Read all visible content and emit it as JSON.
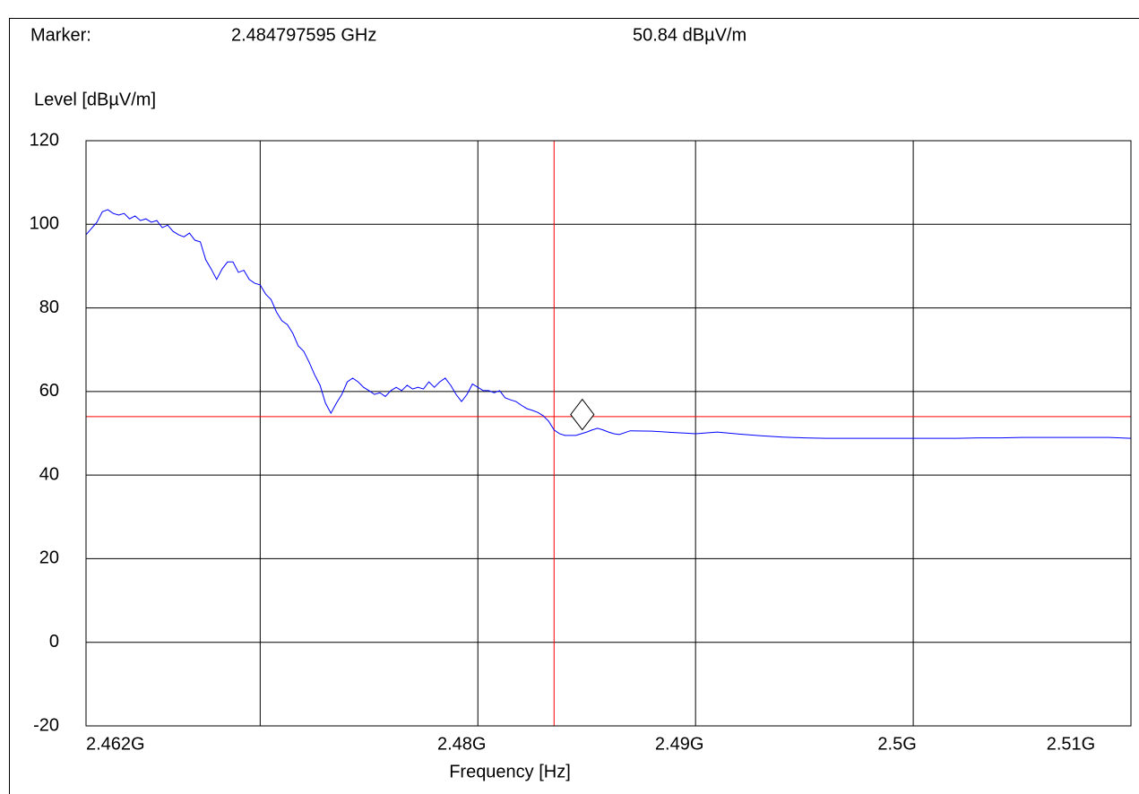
{
  "chart_data": {
    "type": "line",
    "marker_label": "Marker:",
    "marker": {
      "x": 2.484797595,
      "y": 50.84,
      "x_label": "2.484797595 GHz",
      "y_label": "50.84 dBµV/m"
    },
    "ylabel": "Level [dBµV/m]",
    "xlabel": "Frequency [Hz]",
    "xlim": [
      2.462,
      2.51
    ],
    "ylim": [
      -20,
      120
    ],
    "yticks": [
      -20,
      0,
      20,
      40,
      60,
      80,
      100,
      120
    ],
    "xticks": [
      {
        "value": 2.462,
        "label": "2.462G"
      },
      {
        "value": 2.47,
        "label": null
      },
      {
        "value": 2.48,
        "label": "2.48G"
      },
      {
        "value": 2.49,
        "label": "2.49G"
      },
      {
        "value": 2.5,
        "label": "2.5G"
      },
      {
        "value": 2.51,
        "label": "2.51G"
      }
    ],
    "grid": true,
    "limit_lines": {
      "x": 2.4835,
      "y": 54,
      "color": "#ff0000"
    },
    "x": [
      2.462,
      2.46225,
      2.4625,
      2.46275,
      2.463,
      2.46325,
      2.4635,
      2.46375,
      2.464,
      2.46425,
      2.4645,
      2.46475,
      2.465,
      2.46525,
      2.4655,
      2.46575,
      2.466,
      2.46625,
      2.4665,
      2.46675,
      2.467,
      2.46725,
      2.4675,
      2.46775,
      2.468,
      2.46825,
      2.4685,
      2.46875,
      2.469,
      2.46925,
      2.4695,
      2.46975,
      2.47,
      2.47025,
      2.4705,
      2.47075,
      2.471,
      2.47125,
      2.4715,
      2.47175,
      2.472,
      2.47225,
      2.4725,
      2.47275,
      2.473,
      2.47325,
      2.4735,
      2.47375,
      2.474,
      2.47425,
      2.4745,
      2.47475,
      2.475,
      2.47525,
      2.4755,
      2.47575,
      2.476,
      2.47625,
      2.4765,
      2.47675,
      2.477,
      2.47725,
      2.4775,
      2.47775,
      2.478,
      2.47825,
      2.4785,
      2.47875,
      2.479,
      2.47925,
      2.4795,
      2.47975,
      2.48,
      2.48025,
      2.4805,
      2.48075,
      2.481,
      2.48125,
      2.4815,
      2.48175,
      2.482,
      2.48225,
      2.4825,
      2.48275,
      2.483,
      2.48325,
      2.4835,
      2.48375,
      2.484,
      2.48425,
      2.4845,
      2.48475,
      2.485,
      2.48525,
      2.4855,
      2.48575,
      2.486,
      2.48625,
      2.4865,
      2.487,
      2.488,
      2.489,
      2.49,
      2.491,
      2.492,
      2.493,
      2.494,
      2.495,
      2.496,
      2.497,
      2.498,
      2.499,
      2.5,
      2.501,
      2.502,
      2.503,
      2.504,
      2.505,
      2.506,
      2.507,
      2.508,
      2.509,
      2.51
    ],
    "series": [
      {
        "color": "#0000ff",
        "values": [
          97.5,
          99,
          100.5,
          103,
          103.5,
          102.6,
          102.2,
          102.6,
          101.3,
          102,
          100.9,
          101.3,
          100.5,
          100.9,
          99.2,
          99.8,
          98.3,
          97.5,
          97,
          97.9,
          96.2,
          95.8,
          91.5,
          89.3,
          86.8,
          89.3,
          91,
          91,
          88.5,
          89,
          86.8,
          85.9,
          85.5,
          83.3,
          82,
          79,
          76.9,
          76,
          73.9,
          70.9,
          69.6,
          67,
          64,
          61.5,
          57.2,
          54.8,
          57.2,
          59.3,
          62.3,
          63.2,
          62.3,
          61,
          60.2,
          59.3,
          59.7,
          58.8,
          60.2,
          61,
          60.2,
          61.5,
          60.6,
          61,
          60.6,
          62.3,
          61,
          62.3,
          63.2,
          61.5,
          59.3,
          57.6,
          59.3,
          61.8,
          61,
          60.2,
          60.2,
          59.7,
          60.2,
          58.5,
          58,
          57.6,
          56.7,
          55.9,
          55.5,
          55,
          54.2,
          52.9,
          50.8,
          49.9,
          49.5,
          49.5,
          49.5,
          49.9,
          50.3,
          50.8,
          51.2,
          50.8,
          50.3,
          49.9,
          49.7,
          50.6,
          50.5,
          50.2,
          49.9,
          50.3,
          49.8,
          49.4,
          49.1,
          48.9,
          48.8,
          48.8,
          48.8,
          48.8,
          48.8,
          48.8,
          48.8,
          48.9,
          48.9,
          49,
          49,
          49,
          49,
          49,
          48.8
        ]
      }
    ]
  }
}
